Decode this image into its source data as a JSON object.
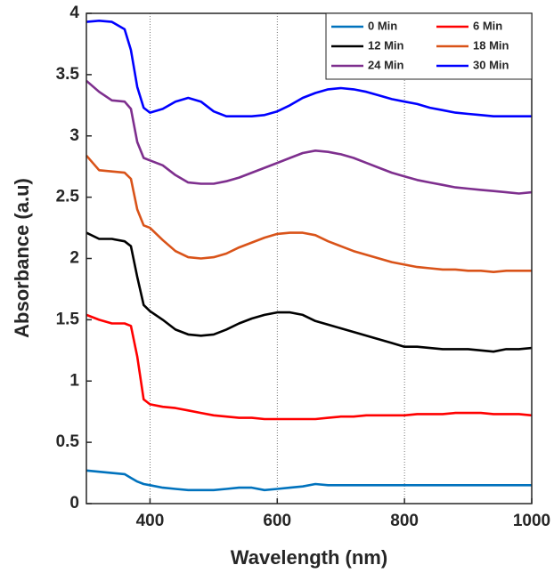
{
  "chart_data": {
    "type": "line",
    "x_label": "Wavelength (nm)",
    "y_label": "Absorbance (a.u)",
    "x": [
      300,
      320,
      340,
      360,
      370,
      380,
      390,
      400,
      420,
      440,
      460,
      480,
      500,
      520,
      540,
      560,
      580,
      600,
      620,
      640,
      660,
      680,
      700,
      720,
      740,
      760,
      780,
      800,
      820,
      840,
      860,
      880,
      900,
      920,
      940,
      960,
      980,
      1000
    ],
    "series": [
      {
        "name": "0 Min",
        "color": "#0072bd",
        "values": [
          0.27,
          0.26,
          0.25,
          0.24,
          0.21,
          0.18,
          0.16,
          0.15,
          0.13,
          0.12,
          0.11,
          0.11,
          0.11,
          0.12,
          0.13,
          0.13,
          0.11,
          0.12,
          0.13,
          0.14,
          0.16,
          0.15,
          0.15,
          0.15,
          0.15,
          0.15,
          0.15,
          0.15,
          0.15,
          0.15,
          0.15,
          0.15,
          0.15,
          0.15,
          0.15,
          0.15,
          0.15,
          0.15
        ]
      },
      {
        "name": "6 Min",
        "color": "#ff0000",
        "values": [
          1.54,
          1.5,
          1.47,
          1.47,
          1.45,
          1.2,
          0.85,
          0.81,
          0.79,
          0.78,
          0.76,
          0.74,
          0.72,
          0.71,
          0.7,
          0.7,
          0.69,
          0.69,
          0.69,
          0.69,
          0.69,
          0.7,
          0.71,
          0.71,
          0.72,
          0.72,
          0.72,
          0.72,
          0.73,
          0.73,
          0.73,
          0.74,
          0.74,
          0.74,
          0.73,
          0.73,
          0.73,
          0.72
        ]
      },
      {
        "name": "12 Min",
        "color": "#000000",
        "values": [
          2.21,
          2.16,
          2.16,
          2.14,
          2.1,
          1.85,
          1.62,
          1.57,
          1.5,
          1.42,
          1.38,
          1.37,
          1.38,
          1.42,
          1.47,
          1.51,
          1.54,
          1.56,
          1.56,
          1.54,
          1.49,
          1.46,
          1.43,
          1.4,
          1.37,
          1.34,
          1.31,
          1.28,
          1.28,
          1.27,
          1.26,
          1.26,
          1.26,
          1.25,
          1.24,
          1.26,
          1.26,
          1.27
        ]
      },
      {
        "name": "18 Min",
        "color": "#d95319",
        "values": [
          2.84,
          2.72,
          2.71,
          2.7,
          2.65,
          2.4,
          2.27,
          2.25,
          2.15,
          2.06,
          2.01,
          2.0,
          2.01,
          2.04,
          2.09,
          2.13,
          2.17,
          2.2,
          2.21,
          2.21,
          2.19,
          2.14,
          2.1,
          2.06,
          2.03,
          2.0,
          1.97,
          1.95,
          1.93,
          1.92,
          1.91,
          1.91,
          1.9,
          1.9,
          1.89,
          1.9,
          1.9,
          1.9
        ]
      },
      {
        "name": "24 Min",
        "color": "#7e2f8e",
        "values": [
          3.45,
          3.36,
          3.29,
          3.28,
          3.22,
          2.95,
          2.82,
          2.8,
          2.76,
          2.68,
          2.62,
          2.61,
          2.61,
          2.63,
          2.66,
          2.7,
          2.74,
          2.78,
          2.82,
          2.86,
          2.88,
          2.87,
          2.85,
          2.82,
          2.78,
          2.74,
          2.7,
          2.67,
          2.64,
          2.62,
          2.6,
          2.58,
          2.57,
          2.56,
          2.55,
          2.54,
          2.53,
          2.54
        ]
      },
      {
        "name": "30 Min",
        "color": "#0000ff",
        "values": [
          3.93,
          3.94,
          3.93,
          3.87,
          3.7,
          3.4,
          3.23,
          3.19,
          3.22,
          3.28,
          3.31,
          3.28,
          3.2,
          3.16,
          3.16,
          3.16,
          3.17,
          3.2,
          3.25,
          3.31,
          3.35,
          3.38,
          3.39,
          3.38,
          3.36,
          3.33,
          3.3,
          3.28,
          3.26,
          3.23,
          3.21,
          3.19,
          3.18,
          3.17,
          3.16,
          3.16,
          3.16,
          3.16
        ]
      }
    ],
    "xlim": [
      300,
      1000
    ],
    "ylim": [
      0,
      4
    ],
    "xticks": [
      400,
      600,
      800,
      1000
    ],
    "yticks": [
      0,
      0.5,
      1,
      1.5,
      2,
      2.5,
      3,
      3.5,
      4
    ],
    "grid": "x",
    "legend": "upper right"
  }
}
